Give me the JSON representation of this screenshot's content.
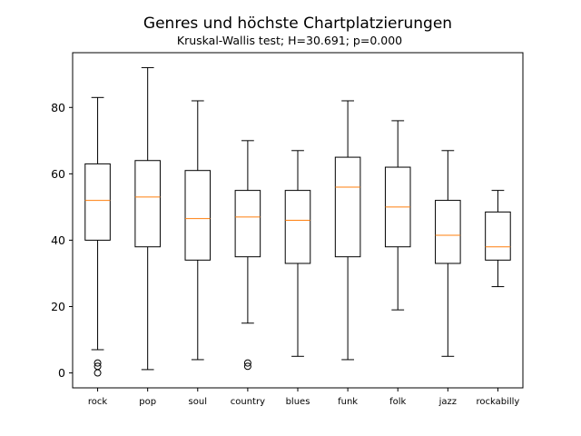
{
  "chart_data": {
    "type": "box",
    "title": "Genres und höchste Chartplatzierungen",
    "subtitle": "Kruskal-Wallis test; H=30.691; p=0.000",
    "xlabel": "",
    "ylabel": "",
    "ylim": [
      -4.5,
      96.5
    ],
    "yticks": [
      0,
      20,
      40,
      60,
      80
    ],
    "grid": false,
    "colors": {
      "box": "#000000",
      "median": "#ff7f0e",
      "background": "#ffffff"
    },
    "categories": [
      "rock",
      "pop",
      "soul",
      "country",
      "blues",
      "funk",
      "folk",
      "jazz",
      "rockabilly"
    ],
    "boxes": [
      {
        "label": "rock",
        "whislo": 7,
        "q1": 40,
        "med": 52,
        "q3": 63,
        "whishi": 83,
        "fliers": [
          0,
          2,
          3
        ]
      },
      {
        "label": "pop",
        "whislo": 1,
        "q1": 38,
        "med": 53,
        "q3": 64,
        "whishi": 92,
        "fliers": []
      },
      {
        "label": "soul",
        "whislo": 4,
        "q1": 34,
        "med": 46.5,
        "q3": 61,
        "whishi": 82,
        "fliers": []
      },
      {
        "label": "country",
        "whislo": 15,
        "q1": 35,
        "med": 47,
        "q3": 55,
        "whishi": 70,
        "fliers": [
          2,
          3
        ]
      },
      {
        "label": "blues",
        "whislo": 5,
        "q1": 33,
        "med": 46,
        "q3": 55,
        "whishi": 67,
        "fliers": []
      },
      {
        "label": "funk",
        "whislo": 4,
        "q1": 35,
        "med": 56,
        "q3": 65,
        "whishi": 82,
        "fliers": []
      },
      {
        "label": "folk",
        "whislo": 19,
        "q1": 38,
        "med": 50,
        "q3": 62,
        "whishi": 76,
        "fliers": []
      },
      {
        "label": "jazz",
        "whislo": 5,
        "q1": 33,
        "med": 41.5,
        "q3": 52,
        "whishi": 67,
        "fliers": []
      },
      {
        "label": "rockabilly",
        "whislo": 26,
        "q1": 34,
        "med": 38,
        "q3": 48.5,
        "whishi": 55,
        "fliers": []
      }
    ]
  }
}
